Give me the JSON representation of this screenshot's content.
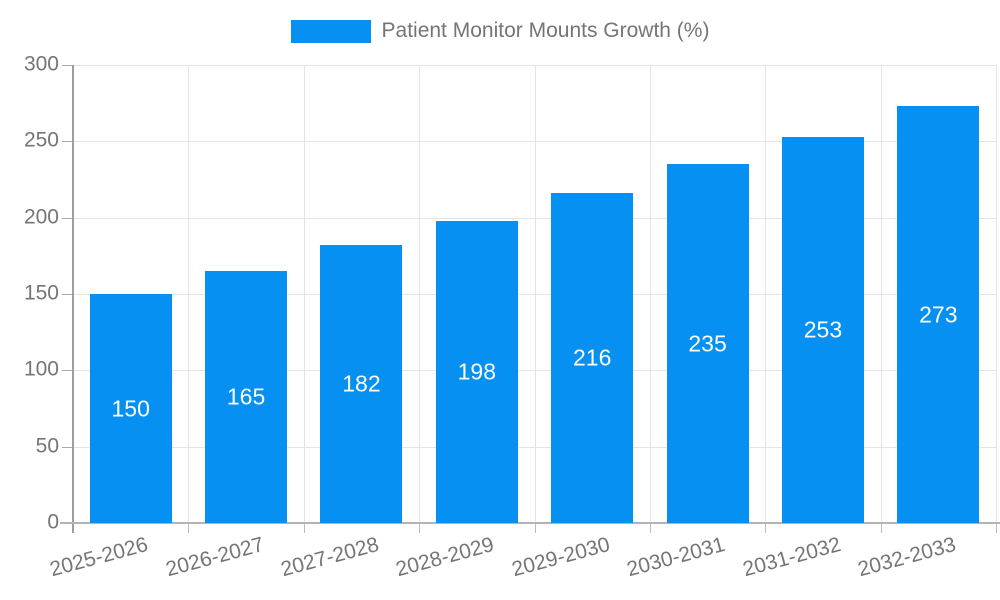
{
  "legend": {
    "label": "Patient Monitor Mounts Growth (%)"
  },
  "chart_data": {
    "type": "bar",
    "title": "Patient Monitor Mounts Growth (%)",
    "categories": [
      "2025-2026",
      "2026-2027",
      "2027-2028",
      "2028-2029",
      "2029-2030",
      "2030-2031",
      "2031-2032",
      "2032-2033"
    ],
    "values": [
      150,
      165,
      182,
      198,
      216,
      235,
      253,
      273
    ],
    "value_labels": [
      "150",
      "165",
      "182",
      "198",
      "216",
      "235",
      "253",
      "273"
    ],
    "xlabel": "",
    "ylabel": "",
    "ylim": [
      0,
      300
    ],
    "yticks": [
      0,
      50,
      100,
      150,
      200,
      250,
      300
    ],
    "grid": true,
    "legend_position": "top-center",
    "x_label_rotation_deg": -15
  },
  "colors": {
    "bar": "#0690f2",
    "bar_value_text": "#ffffff",
    "axis_text": "#757575",
    "grid_line": "#e4e4e4",
    "y_axis_line": "#9e9e9e",
    "x_axis_line": "#b3b3b3",
    "background": "#ffffff"
  }
}
